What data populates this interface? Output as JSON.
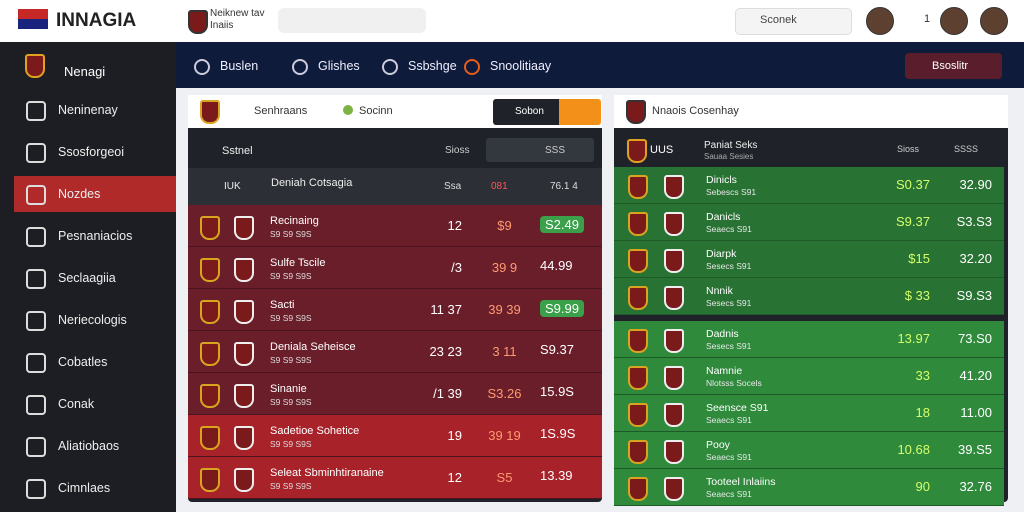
{
  "topbar": {
    "brand": "INNAGIA",
    "badge_title": "Neiknew tav",
    "badge_sub": "Inaiis",
    "search": "Sconek",
    "notify_count": "1"
  },
  "sidebar": {
    "title": "Nenagi",
    "items": [
      "Neninenay",
      "Ssosforgeoi",
      "Nozdes",
      "Pesnaniacios",
      "Seclaagiia",
      "Neriecologis",
      "Cobatles",
      "Conak",
      "Aliatiobaos",
      "Cimnlaes"
    ],
    "active": 2
  },
  "nav": {
    "items": [
      "Buslen",
      "Glishes",
      "Ssbshge",
      "Snoolitiaay"
    ],
    "button": "Bsoslitr"
  },
  "left": {
    "tabs": [
      "Senhraans",
      "Socinn"
    ],
    "action": "Sobon",
    "header": {
      "title": "Sstnel",
      "col": "Sioss",
      "select": "SSS"
    },
    "group": {
      "code": "IUK",
      "title": "Deniah Cotsagia",
      "col1": "Ssa",
      "col2": "081",
      "col3": "76.1 4"
    },
    "rows": [
      {
        "name": "Recinaing",
        "sub": "S9 S9 S9S",
        "a": "12",
        "b": "$9",
        "c": "S2.49",
        "highlight": "green"
      },
      {
        "name": "Sulfe Tscile",
        "sub": "S9 S9 S9S",
        "a": "/3",
        "b": "39 9",
        "c": "44.99"
      },
      {
        "name": "Sacti",
        "sub": "S9 S9 S9S",
        "a": "11 37",
        "b": "39 39",
        "c": "S9.99",
        "highlight": "green"
      },
      {
        "name": "Deniala Seheisce",
        "sub": "S9 S9 S9S",
        "a": "23 23",
        "b": "3 11",
        "c": "S9.37"
      },
      {
        "name": "Sinanie",
        "sub": "S9 S9 S9S",
        "a": "/1 39",
        "b": "S3.26",
        "c": "15.9S"
      },
      {
        "name": "Sadetioe Sohetice",
        "sub": "S9 S9 S9S",
        "a": "19",
        "b": "39 19",
        "c": "1S.9S"
      },
      {
        "name": "Seleat Sbminhtiranaine",
        "sub": "S9 S9 S9S",
        "a": "12",
        "b": "S5",
        "c": "13.39"
      }
    ]
  },
  "right": {
    "title": "Nnaois Cosenhay",
    "header": {
      "code": "UUS",
      "title": "Paniat Seks",
      "sub": "Sauaa Sesies",
      "col": "Sioss",
      "select": "SSSS"
    },
    "rows": [
      {
        "name": "Dinicls",
        "sub": "Sebescs S91",
        "a": "S0.37",
        "b": "32.90"
      },
      {
        "name": "Danicls",
        "sub": "Seaecs S91",
        "a": "S9.37",
        "b": "S3.S3"
      },
      {
        "name": "Diarpk",
        "sub": "Sesecs S91",
        "a": "$15",
        "b": "32.20"
      },
      {
        "name": "Nnnik",
        "sub": "Sesecs S91",
        "a": "$ 33",
        "b": "S9.S3"
      },
      {
        "name": "Dadnis",
        "sub": "Sesecs S91",
        "a": "13.97",
        "b": "73.S0"
      },
      {
        "name": "Namnie",
        "sub": "Nlotsss Socels",
        "a": "33",
        "b": "41.20"
      },
      {
        "name": "Seensce S91",
        "sub": "Seaecs S91",
        "a": "18",
        "b": "11.00"
      },
      {
        "name": "Pooy",
        "sub": "Seaecs S91",
        "a": "10.68",
        "b": "39.S5"
      },
      {
        "name": "Tooteel Inlaiins",
        "sub": "Seaecs S91",
        "a": "90",
        "b": "32.76"
      }
    ]
  }
}
